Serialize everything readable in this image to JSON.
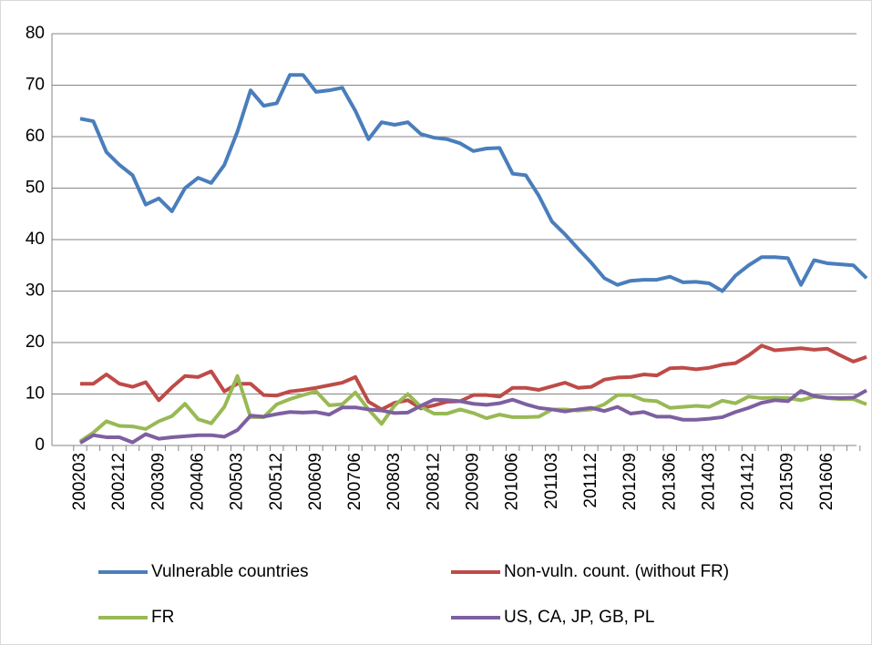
{
  "chart_data": {
    "type": "line",
    "categories": [
      "200203",
      null,
      null,
      "200212",
      null,
      null,
      "200309",
      null,
      null,
      "200406",
      null,
      null,
      "200503",
      null,
      null,
      "200512",
      null,
      null,
      "200609",
      null,
      null,
      "200706",
      null,
      null,
      "200803",
      null,
      null,
      "200812",
      null,
      null,
      "200909",
      null,
      null,
      "201006",
      null,
      null,
      "201103",
      null,
      null,
      "201112",
      null,
      null,
      "201209",
      null,
      null,
      "201306",
      null,
      null,
      "201403",
      null,
      null,
      "201412",
      null,
      null,
      "201509",
      null,
      null,
      "201606",
      null,
      null,
      null
    ],
    "series": [
      {
        "name": "Vulnerable countries",
        "color": "#4a7ebb",
        "values": [
          63.5,
          63,
          57,
          54.5,
          52.5,
          46.8,
          48,
          45.5,
          50,
          52,
          51,
          54.5,
          61,
          69,
          66,
          66.5,
          72,
          72,
          68.7,
          69,
          69.5,
          65,
          59.5,
          62.8,
          62.3,
          62.8,
          60.5,
          59.8,
          59.5,
          58.7,
          57.2,
          57.7,
          57.8,
          52.8,
          52.5,
          48.5,
          43.5,
          41,
          38.2,
          35.5,
          32.5,
          31.2,
          32,
          32.2,
          32.2,
          32.8,
          31.7,
          31.8,
          31.5,
          30,
          33,
          35,
          36.6,
          36.6,
          36.4,
          31.2,
          36,
          35.4,
          35.2,
          35,
          32.5
        ]
      },
      {
        "name": "Non-vuln. count. (without FR)",
        "color": "#be4b48",
        "values": [
          12,
          12,
          13.8,
          12,
          11.4,
          12.3,
          8.8,
          11.3,
          13.5,
          13.3,
          14.4,
          10.5,
          12,
          12,
          9.8,
          9.7,
          10.5,
          10.8,
          11.2,
          11.7,
          12.2,
          13.3,
          8.5,
          7,
          8.3,
          8.8,
          7.2,
          7.8,
          8.5,
          8.6,
          9.8,
          9.8,
          9.5,
          11.2,
          11.2,
          10.8,
          11.5,
          12.2,
          11.2,
          11.4,
          12.8,
          13.2,
          13.3,
          13.8,
          13.6,
          15,
          15.1,
          14.8,
          15.1,
          15.7,
          16,
          17.5,
          19.4,
          18.5,
          18.7,
          18.9,
          18.6,
          18.8,
          17.5,
          16.3,
          17.2
        ]
      },
      {
        "name": "FR",
        "color": "#98b954",
        "values": [
          0.8,
          2.5,
          4.7,
          3.8,
          3.7,
          3.2,
          4.7,
          5.7,
          8.1,
          5.1,
          4.3,
          7.5,
          13.5,
          5.5,
          5.5,
          8,
          9,
          9.8,
          10.5,
          7.8,
          8,
          10.3,
          7,
          4.2,
          7.8,
          10,
          7.5,
          6.2,
          6.2,
          7,
          6.3,
          5.3,
          6,
          5.5,
          5.5,
          5.6,
          7,
          7,
          6.8,
          7,
          8,
          9.8,
          9.8,
          8.8,
          8.6,
          7.3,
          7.5,
          7.7,
          7.5,
          8.7,
          8.2,
          9.5,
          9.2,
          9.3,
          9.2,
          8.8,
          9.5,
          9.2,
          9,
          9,
          8.0
        ]
      },
      {
        "name": "US, CA, JP, GB, PL",
        "color": "#7d60a0",
        "values": [
          0.5,
          2,
          1.6,
          1.6,
          0.6,
          2.2,
          1.3,
          1.6,
          1.8,
          2,
          2,
          1.7,
          3,
          5.8,
          5.6,
          6.1,
          6.5,
          6.4,
          6.5,
          6,
          7.4,
          7.4,
          7,
          6.8,
          6.3,
          6.4,
          7.7,
          8.9,
          8.8,
          8.6,
          8.1,
          7.9,
          8.2,
          8.9,
          8,
          7.3,
          7,
          6.6,
          7,
          7.3,
          6.7,
          7.5,
          6.2,
          6.5,
          5.6,
          5.6,
          5,
          5,
          5.2,
          5.5,
          6.5,
          7.3,
          8.3,
          8.8,
          8.6,
          10.6,
          9.6,
          9.3,
          9.2,
          9.3,
          10.7
        ]
      }
    ],
    "ylim": [
      0,
      80
    ],
    "yticks": [
      0,
      10,
      20,
      30,
      40,
      50,
      60,
      70,
      80
    ],
    "grid": true,
    "legend": "bottom"
  }
}
